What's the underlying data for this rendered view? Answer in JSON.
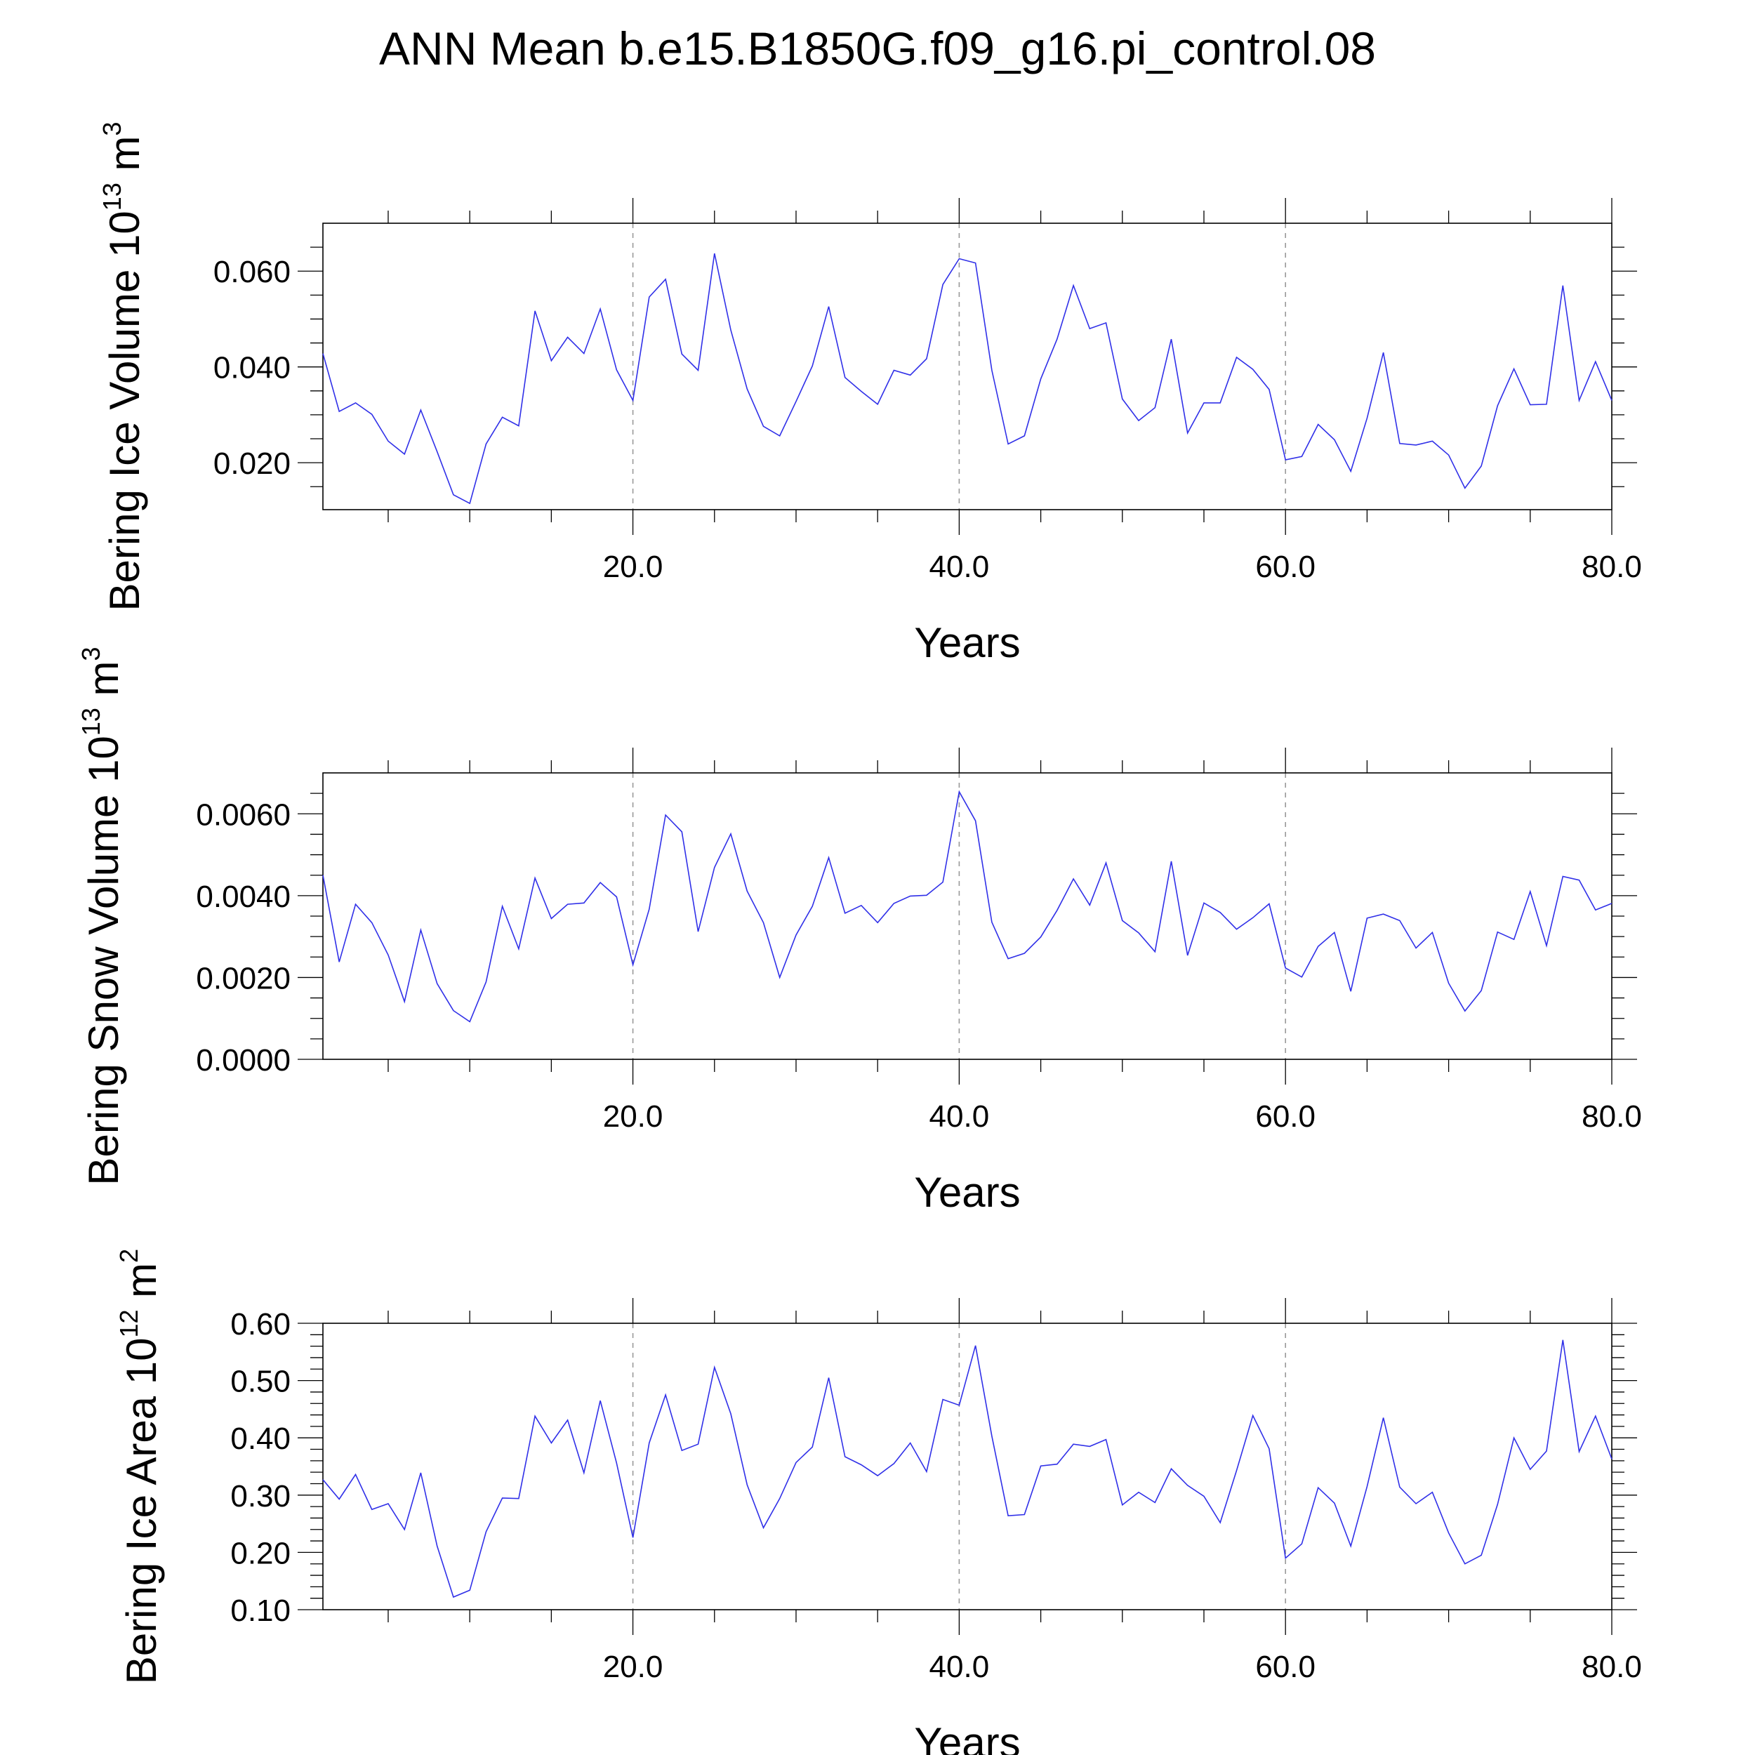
{
  "title": "ANN Mean b.e15.B1850G.f09_g16.pi_control.08",
  "colors": {
    "series": "#3030e8"
  },
  "chart_data": [
    {
      "type": "line",
      "title": "",
      "xlabel": "Years",
      "ylabel": "Bering Ice Volume 10^13 m^3",
      "ylabel_main": "Bering Ice Volume 10",
      "ylabel_exp": "13",
      "ylabel_unit": "m",
      "ylabel_unit_exp": "3",
      "xlim": [
        1,
        80
      ],
      "ylim": [
        0.0102,
        0.07
      ],
      "xticks": [
        20,
        40,
        60,
        80
      ],
      "xtick_labels": [
        "20.0",
        "40.0",
        "60.0",
        "80.0"
      ],
      "yticks": [
        0.02,
        0.04,
        0.06
      ],
      "ytick_labels": [
        "0.020",
        "0.040",
        "0.060"
      ],
      "yminor": [
        0.015,
        0.025,
        0.03,
        0.035,
        0.045,
        0.05,
        0.055,
        0.065
      ],
      "grid": "vertical dashed at major x ticks",
      "series": [
        {
          "x": [
            1,
            2,
            3,
            4,
            5,
            6,
            7,
            8,
            9,
            10,
            11,
            12,
            13,
            14,
            15,
            16,
            17,
            18,
            19,
            20,
            21,
            22,
            23,
            24,
            25,
            26,
            27,
            28,
            29,
            30,
            31,
            32,
            33,
            34,
            35,
            36,
            37,
            38,
            39,
            40,
            41,
            42,
            43,
            44,
            45,
            46,
            47,
            48,
            49,
            50,
            51,
            52,
            53,
            54,
            55,
            56,
            57,
            58,
            59,
            60,
            61,
            62,
            63,
            64,
            65,
            66,
            67,
            68,
            69,
            70,
            71,
            72,
            73,
            74,
            75,
            76,
            77,
            78,
            79,
            80
          ],
          "values": [
            0.0428,
            0.0307,
            0.0325,
            0.0301,
            0.0245,
            0.0218,
            0.031,
            0.0223,
            0.0133,
            0.0115,
            0.0239,
            0.0295,
            0.0277,
            0.0517,
            0.0413,
            0.0462,
            0.0428,
            0.0521,
            0.0394,
            0.033,
            0.0546,
            0.0583,
            0.0427,
            0.0393,
            0.0637,
            0.0477,
            0.0354,
            0.0276,
            0.0256,
            0.0328,
            0.0402,
            0.0526,
            0.0378,
            0.0349,
            0.0322,
            0.0393,
            0.0383,
            0.0417,
            0.0572,
            0.0626,
            0.0617,
            0.0393,
            0.0239,
            0.0256,
            0.0375,
            0.0458,
            0.057,
            0.048,
            0.0492,
            0.0333,
            0.0288,
            0.0315,
            0.0458,
            0.0262,
            0.0325,
            0.0325,
            0.042,
            0.0395,
            0.0353,
            0.0206,
            0.0213,
            0.028,
            0.0248,
            0.0182,
            0.0293,
            0.043,
            0.024,
            0.0237,
            0.0245,
            0.0216,
            0.0147,
            0.0193,
            0.0319,
            0.0396,
            0.0321,
            0.0322,
            0.057,
            0.033,
            0.0411,
            0.033
          ]
        }
      ]
    },
    {
      "type": "line",
      "title": "",
      "xlabel": "Years",
      "ylabel": "Bering Snow Volume 10^13 m^3",
      "ylabel_main": "Bering Snow Volume 10",
      "ylabel_exp": "13",
      "ylabel_unit": "m",
      "ylabel_unit_exp": "3",
      "xlim": [
        1,
        80
      ],
      "ylim": [
        0.0,
        0.007
      ],
      "xticks": [
        20,
        40,
        60,
        80
      ],
      "xtick_labels": [
        "20.0",
        "40.0",
        "60.0",
        "80.0"
      ],
      "yticks": [
        0.0,
        0.002,
        0.004,
        0.006
      ],
      "ytick_labels": [
        "0.0000",
        "0.0020",
        "0.0040",
        "0.0060"
      ],
      "yminor": [
        0.0005,
        0.001,
        0.0015,
        0.0025,
        0.003,
        0.0035,
        0.0045,
        0.005,
        0.0055,
        0.0065
      ],
      "grid": "vertical dashed at major x ticks",
      "series": [
        {
          "x": [
            1,
            2,
            3,
            4,
            5,
            6,
            7,
            8,
            9,
            10,
            11,
            12,
            13,
            14,
            15,
            16,
            17,
            18,
            19,
            20,
            21,
            22,
            23,
            24,
            25,
            26,
            27,
            28,
            29,
            30,
            31,
            32,
            33,
            34,
            35,
            36,
            37,
            38,
            39,
            40,
            41,
            42,
            43,
            44,
            45,
            46,
            47,
            48,
            49,
            50,
            51,
            52,
            53,
            54,
            55,
            56,
            57,
            58,
            59,
            60,
            61,
            62,
            63,
            64,
            65,
            66,
            67,
            68,
            69,
            70,
            71,
            72,
            73,
            74,
            75,
            76,
            77,
            78,
            79,
            80
          ],
          "values": [
            0.0045,
            0.00238,
            0.00379,
            0.00334,
            0.00255,
            0.00141,
            0.00316,
            0.00185,
            0.00119,
            0.00092,
            0.00189,
            0.00374,
            0.0027,
            0.00443,
            0.00344,
            0.00379,
            0.00382,
            0.00432,
            0.00397,
            0.00231,
            0.00367,
            0.00597,
            0.00556,
            0.00312,
            0.00469,
            0.00551,
            0.00411,
            0.00334,
            0.002,
            0.00304,
            0.00374,
            0.00493,
            0.00357,
            0.00376,
            0.00334,
            0.00381,
            0.00399,
            0.00401,
            0.00433,
            0.00654,
            0.00583,
            0.00335,
            0.00246,
            0.00259,
            0.00299,
            0.00364,
            0.00441,
            0.00377,
            0.0048,
            0.00339,
            0.00309,
            0.00263,
            0.00484,
            0.00254,
            0.00382,
            0.00359,
            0.00318,
            0.00346,
            0.0038,
            0.00223,
            0.00201,
            0.00276,
            0.0031,
            0.00166,
            0.00345,
            0.00355,
            0.00339,
            0.00272,
            0.0031,
            0.00186,
            0.00118,
            0.00168,
            0.00311,
            0.00293,
            0.0041,
            0.00278,
            0.00447,
            0.00438,
            0.00365,
            0.00381
          ]
        }
      ]
    },
    {
      "type": "line",
      "title": "",
      "xlabel": "Years",
      "ylabel": "Bering Ice Area 10^12 m^2",
      "ylabel_main": "Bering Ice Area 10",
      "ylabel_exp": "12",
      "ylabel_unit": "m",
      "ylabel_unit_exp": "2",
      "xlim": [
        1,
        80
      ],
      "ylim": [
        0.1,
        0.6
      ],
      "xticks": [
        20,
        40,
        60,
        80
      ],
      "xtick_labels": [
        "20.0",
        "40.0",
        "60.0",
        "80.0"
      ],
      "yticks": [
        0.1,
        0.2,
        0.3,
        0.4,
        0.5,
        0.6
      ],
      "ytick_labels": [
        "0.10",
        "0.20",
        "0.30",
        "0.40",
        "0.50",
        "0.60"
      ],
      "yminor": [
        0.12,
        0.14,
        0.16,
        0.18,
        0.22,
        0.24,
        0.26,
        0.28,
        0.32,
        0.34,
        0.36,
        0.38,
        0.42,
        0.44,
        0.46,
        0.48,
        0.52,
        0.54,
        0.56,
        0.58
      ],
      "grid": "vertical dashed at major x ticks",
      "series": [
        {
          "x": [
            1,
            2,
            3,
            4,
            5,
            6,
            7,
            8,
            9,
            10,
            11,
            12,
            13,
            14,
            15,
            16,
            17,
            18,
            19,
            20,
            21,
            22,
            23,
            24,
            25,
            26,
            27,
            28,
            29,
            30,
            31,
            32,
            33,
            34,
            35,
            36,
            37,
            38,
            39,
            40,
            41,
            42,
            43,
            44,
            45,
            46,
            47,
            48,
            49,
            50,
            51,
            52,
            53,
            54,
            55,
            56,
            57,
            58,
            59,
            60,
            61,
            62,
            63,
            64,
            65,
            66,
            67,
            68,
            69,
            70,
            71,
            72,
            73,
            74,
            75,
            76,
            77,
            78,
            79,
            80
          ],
          "values": [
            0.327,
            0.293,
            0.336,
            0.275,
            0.285,
            0.24,
            0.339,
            0.211,
            0.122,
            0.134,
            0.236,
            0.295,
            0.294,
            0.438,
            0.391,
            0.431,
            0.339,
            0.465,
            0.356,
            0.226,
            0.391,
            0.475,
            0.378,
            0.389,
            0.523,
            0.442,
            0.318,
            0.243,
            0.294,
            0.357,
            0.384,
            0.505,
            0.367,
            0.353,
            0.334,
            0.355,
            0.391,
            0.341,
            0.467,
            0.457,
            0.561,
            0.403,
            0.264,
            0.266,
            0.351,
            0.354,
            0.389,
            0.385,
            0.397,
            0.283,
            0.305,
            0.287,
            0.346,
            0.317,
            0.298,
            0.252,
            0.343,
            0.439,
            0.381,
            0.19,
            0.215,
            0.313,
            0.286,
            0.211,
            0.315,
            0.435,
            0.314,
            0.285,
            0.305,
            0.234,
            0.18,
            0.195,
            0.284,
            0.4,
            0.345,
            0.377,
            0.571,
            0.376,
            0.438,
            0.363
          ]
        }
      ]
    }
  ]
}
